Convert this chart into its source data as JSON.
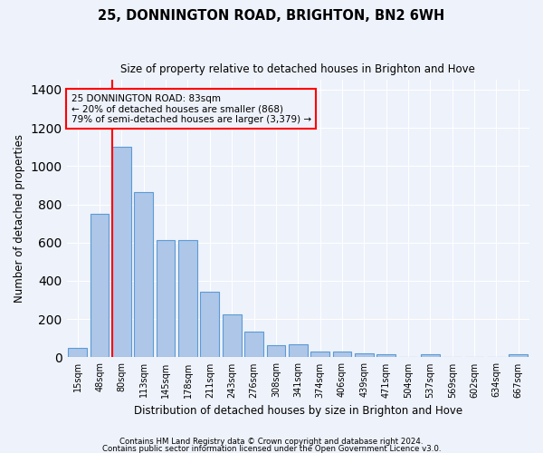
{
  "title": "25, DONNINGTON ROAD, BRIGHTON, BN2 6WH",
  "subtitle": "Size of property relative to detached houses in Brighton and Hove",
  "xlabel": "Distribution of detached houses by size in Brighton and Hove",
  "ylabel": "Number of detached properties",
  "footer1": "Contains HM Land Registry data © Crown copyright and database right 2024.",
  "footer2": "Contains public sector information licensed under the Open Government Licence v3.0.",
  "bar_labels": [
    "15sqm",
    "48sqm",
    "80sqm",
    "113sqm",
    "145sqm",
    "178sqm",
    "211sqm",
    "243sqm",
    "276sqm",
    "308sqm",
    "341sqm",
    "374sqm",
    "406sqm",
    "439sqm",
    "471sqm",
    "504sqm",
    "537sqm",
    "569sqm",
    "602sqm",
    "634sqm",
    "667sqm"
  ],
  "bar_values": [
    48,
    750,
    1100,
    865,
    615,
    615,
    345,
    225,
    135,
    65,
    70,
    30,
    30,
    22,
    15,
    0,
    15,
    0,
    0,
    0,
    15
  ],
  "bar_color": "#aec6e8",
  "bar_edge_color": "#5b9bd5",
  "property_line_index": 2,
  "property_line_color": "red",
  "annotation_line1": "25 DONNINGTON ROAD: 83sqm",
  "annotation_line2": "← 20% of detached houses are smaller (868)",
  "annotation_line3": "79% of semi-detached houses are larger (3,379) →",
  "annotation_box_color": "red",
  "ylim": [
    0,
    1450
  ],
  "yticks": [
    0,
    200,
    400,
    600,
    800,
    1000,
    1200,
    1400
  ],
  "background_color": "#eef2fb",
  "grid_color": "#ffffff",
  "figsize": [
    6.0,
    5.0
  ],
  "dpi": 100
}
